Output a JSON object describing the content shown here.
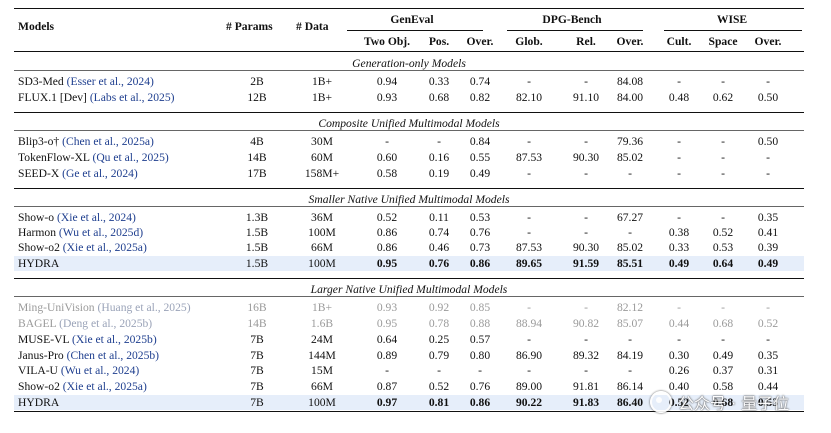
{
  "header": {
    "models": "Models",
    "params": "# Params",
    "data": "# Data",
    "groups": [
      "GenEval",
      "DPG-Bench",
      "WISE"
    ],
    "sub": [
      "Two Obj.",
      "Pos.",
      "Over.",
      "Glob.",
      "Rel.",
      "Over.",
      "Cult.",
      "Space",
      "Over."
    ]
  },
  "sections": [
    "Generation-only Models",
    "Composite Unified Multimodal Models",
    "Smaller Native Unified Multimodal Models",
    "Larger Native Unified Multimodal Models"
  ],
  "rows": [
    {
      "name": "SD3-Med",
      "cite": "(Esser et al., 2024)",
      "params": "2B",
      "data": "1B+",
      "v": [
        "0.94",
        "0.33",
        "0.74",
        "-",
        "-",
        "84.08",
        "-",
        "-",
        "-"
      ]
    },
    {
      "name": "FLUX.1 [Dev]",
      "cite": "(Labs et al., 2025)",
      "params": "12B",
      "data": "1B+",
      "v": [
        "0.93",
        "0.68",
        "0.82",
        "82.10",
        "91.10",
        "84.00",
        "0.48",
        "0.62",
        "0.50"
      ]
    },
    {
      "name": "Blip3-o†",
      "cite": "(Chen et al., 2025a)",
      "params": "4B",
      "data": "30M",
      "v": [
        "-",
        "-",
        "0.84",
        "-",
        "-",
        "79.36",
        "-",
        "-",
        "0.50"
      ]
    },
    {
      "name": "TokenFlow-XL",
      "cite": "(Qu et al., 2025)",
      "params": "14B",
      "data": "60M",
      "v": [
        "0.60",
        "0.16",
        "0.55",
        "87.53",
        "90.30",
        "85.02",
        "-",
        "-",
        "-"
      ]
    },
    {
      "name": "SEED-X",
      "cite": "(Ge et al., 2024)",
      "params": "17B",
      "data": "158M+",
      "v": [
        "0.58",
        "0.19",
        "0.49",
        "-",
        "-",
        "-",
        "-",
        "-",
        "-"
      ]
    },
    {
      "name": "Show-o",
      "cite": "(Xie et al., 2024)",
      "params": "1.3B",
      "data": "36M",
      "v": [
        "0.52",
        "0.11",
        "0.53",
        "-",
        "-",
        "67.27",
        "-",
        "-",
        "0.35"
      ]
    },
    {
      "name": "Harmon",
      "cite": "(Wu et al., 2025d)",
      "params": "1.5B",
      "data": "100M",
      "v": [
        "0.86",
        "0.74",
        "0.76",
        "-",
        "-",
        "-",
        "0.38",
        "0.52",
        "0.41"
      ]
    },
    {
      "name": "Show-o2",
      "cite": "(Xie et al., 2025a)",
      "params": "1.5B",
      "data": "66M",
      "v": [
        "0.86",
        "0.46",
        "0.73",
        "87.53",
        "90.30",
        "85.02",
        "0.33",
        "0.53",
        "0.39"
      ]
    },
    {
      "name": "HYDRA",
      "cite": "",
      "params": "1.5B",
      "data": "100M",
      "v": [
        "0.95",
        "0.76",
        "0.86",
        "89.65",
        "91.59",
        "85.51",
        "0.49",
        "0.64",
        "0.49"
      ]
    },
    {
      "name": "Ming-UniVision",
      "cite": "(Huang et al., 2025)",
      "params": "16B",
      "data": "1B+",
      "v": [
        "0.93",
        "0.92",
        "0.85",
        "-",
        "-",
        "82.12",
        "-",
        "-",
        "-"
      ]
    },
    {
      "name": "BAGEL",
      "cite": "(Deng et al., 2025b)",
      "params": "14B",
      "data": "1.6B",
      "v": [
        "0.95",
        "0.78",
        "0.88",
        "88.94",
        "90.82",
        "85.07",
        "0.44",
        "0.68",
        "0.52"
      ]
    },
    {
      "name": "MUSE-VL",
      "cite": "(Xie et al., 2025b)",
      "params": "7B",
      "data": "24M",
      "v": [
        "0.64",
        "0.25",
        "0.57",
        "-",
        "-",
        "-",
        "-",
        "-",
        "-"
      ]
    },
    {
      "name": "Janus-Pro",
      "cite": "(Chen et al., 2025b)",
      "params": "7B",
      "data": "144M",
      "v": [
        "0.89",
        "0.79",
        "0.80",
        "86.90",
        "89.32",
        "84.19",
        "0.30",
        "0.49",
        "0.35"
      ]
    },
    {
      "name": "VILA-U",
      "cite": "(Wu et al., 2024)",
      "params": "7B",
      "data": "15M",
      "v": [
        "-",
        "-",
        "-",
        "-",
        "-",
        "-",
        "0.26",
        "0.37",
        "0.31"
      ]
    },
    {
      "name": "Show-o2",
      "cite": "(Xie et al., 2025a)",
      "params": "7B",
      "data": "66M",
      "v": [
        "0.87",
        "0.52",
        "0.76",
        "89.00",
        "91.81",
        "86.14",
        "0.40",
        "0.58",
        "0.44"
      ]
    },
    {
      "name": "HYDRA",
      "cite": "",
      "params": "7B",
      "data": "100M",
      "v": [
        "0.97",
        "0.81",
        "0.86",
        "90.22",
        "91.83",
        "86.40",
        "0.52",
        "0.68",
        "0.53"
      ]
    }
  ],
  "watermark": "公众号 · 量子位"
}
